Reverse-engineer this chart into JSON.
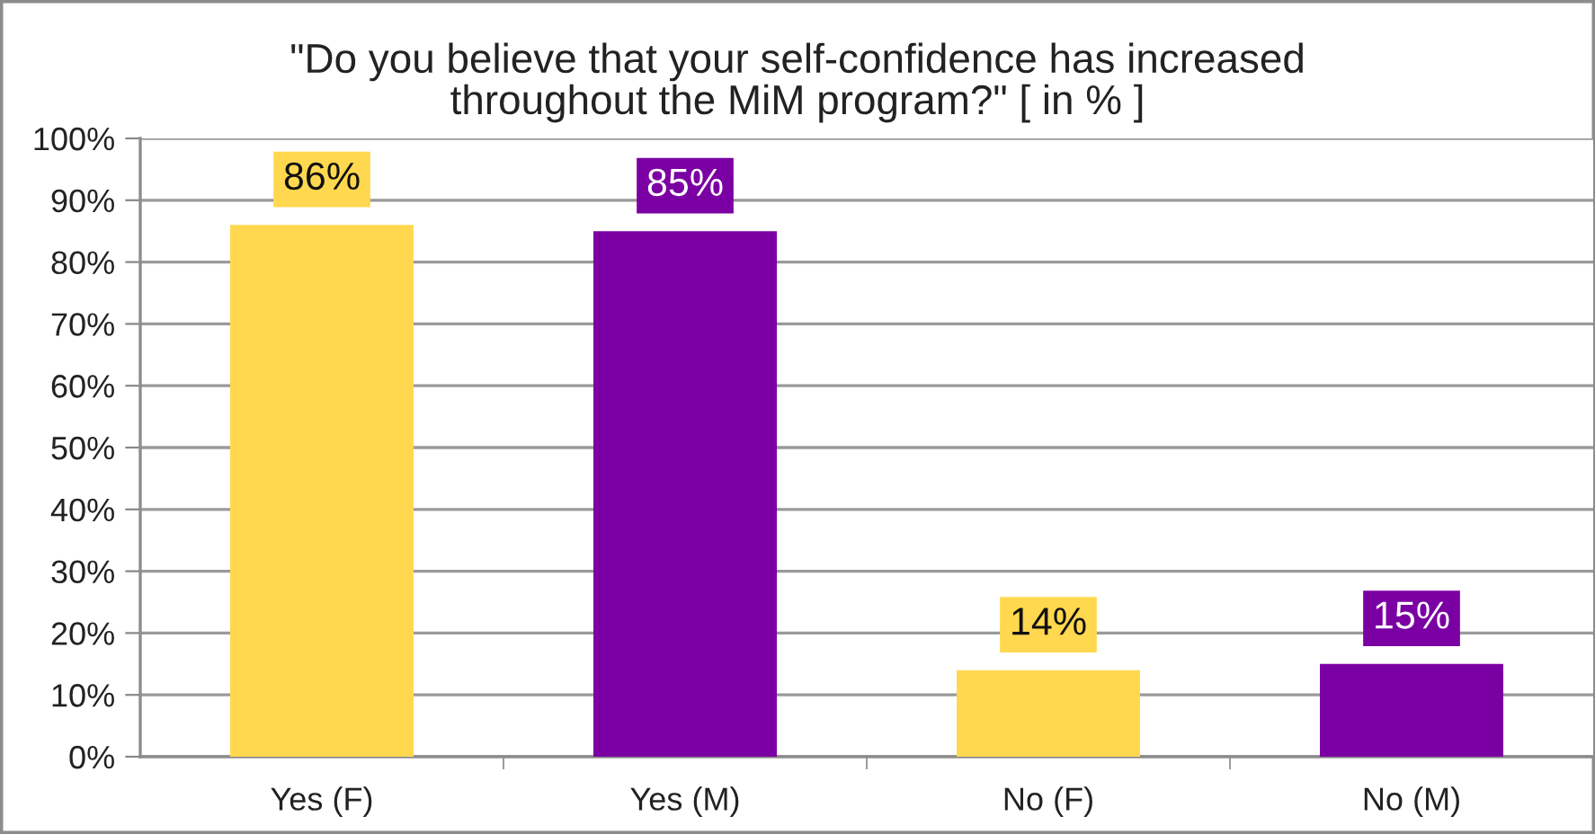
{
  "chart_data": {
    "type": "bar",
    "title": "\"Do you believe that your self-confidence has increased\nthroughout the MiM program?\" [ in % ]",
    "categories": [
      "Yes (F)",
      "Yes (M)",
      "No (F)",
      "No (M)"
    ],
    "values": [
      86,
      85,
      14,
      15
    ],
    "colors": [
      "#ffd84f",
      "#7b00a3",
      "#ffd84f",
      "#7b00a3"
    ],
    "value_labels": [
      "86%",
      "85%",
      "14%",
      "15%"
    ],
    "ylim": [
      0,
      100
    ],
    "yticks": [
      {
        "value": 0,
        "label": "0%"
      },
      {
        "value": 10,
        "label": "10%"
      },
      {
        "value": 20,
        "label": "20%"
      },
      {
        "value": 30,
        "label": "30%"
      },
      {
        "value": 40,
        "label": "40%"
      },
      {
        "value": 50,
        "label": "50%"
      },
      {
        "value": 60,
        "label": "60%"
      },
      {
        "value": 70,
        "label": "70%"
      },
      {
        "value": 80,
        "label": "80%"
      },
      {
        "value": 90,
        "label": "90%"
      },
      {
        "value": 100,
        "label": "100%"
      }
    ],
    "grid": "y",
    "legend": false
  }
}
